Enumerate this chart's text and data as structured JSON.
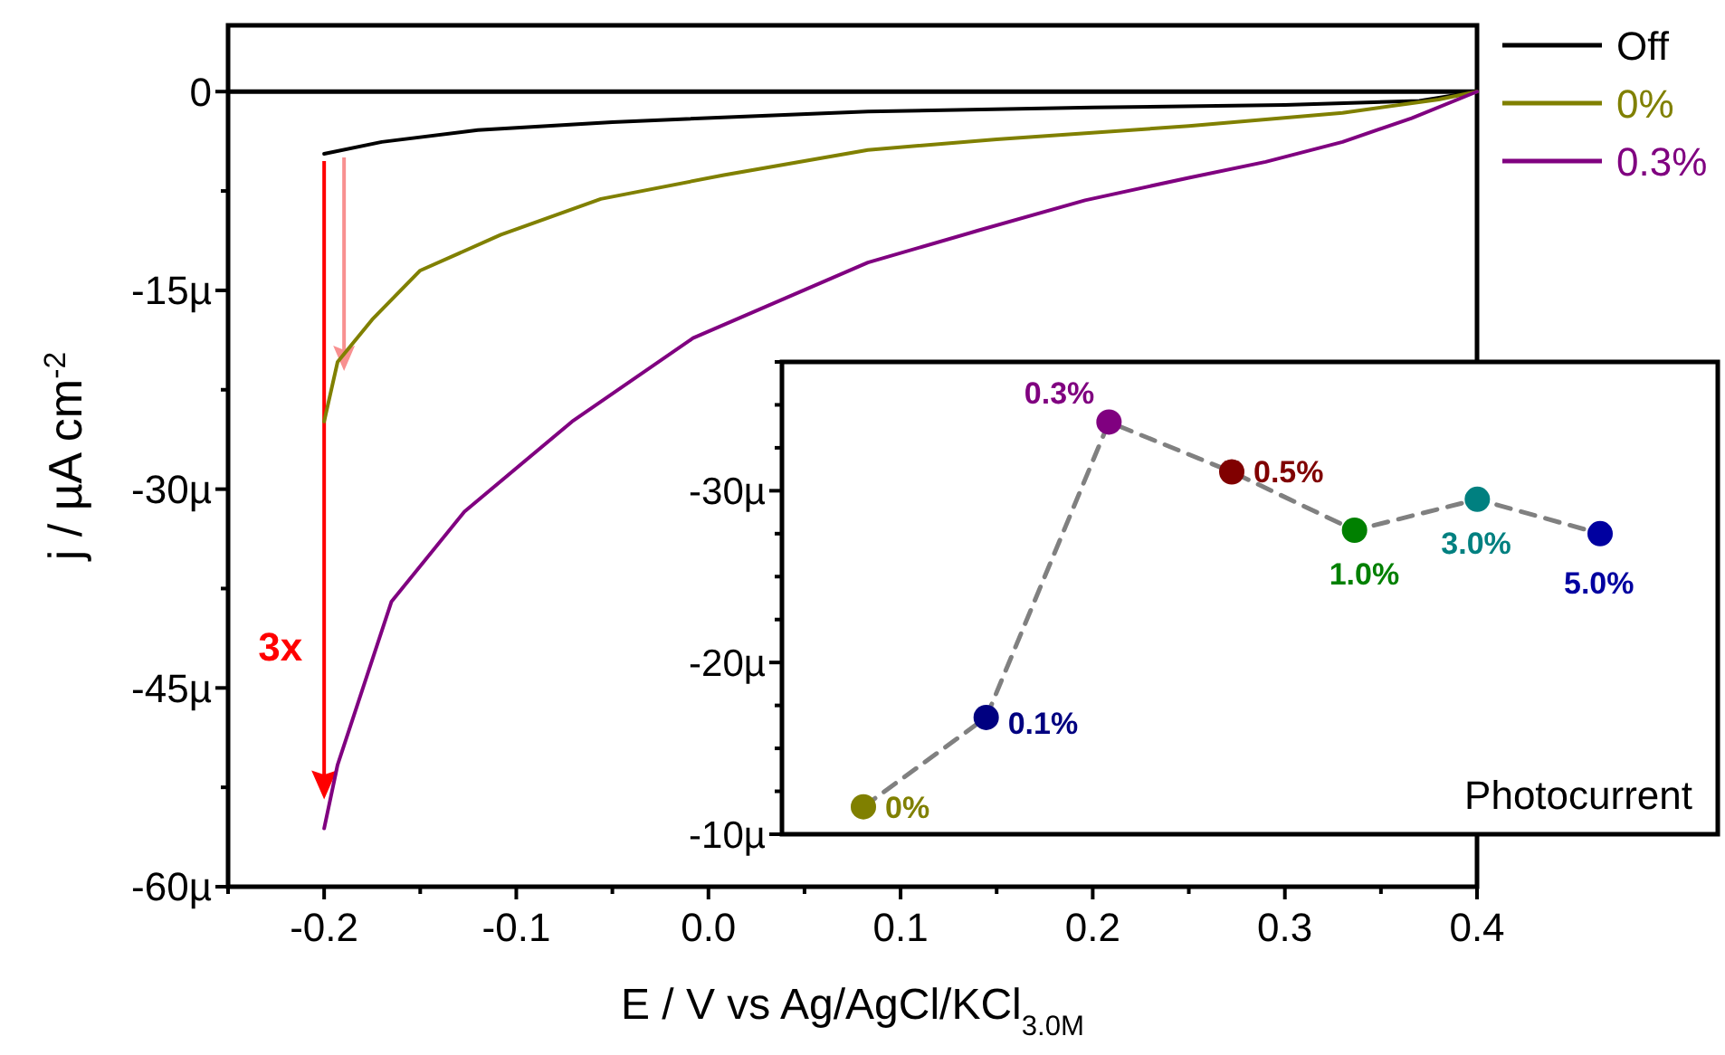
{
  "chart_data": [
    {
      "type": "line",
      "xlabel": "E / V vs  Ag/AgCl/KCl$_{3.0M}$",
      "ylabel": "j / µA cm$^{-2}$",
      "xlim": [
        -0.25,
        0.4
      ],
      "ylim": [
        -60,
        5
      ],
      "xticks": [
        {
          "value": -0.25,
          "label": null
        },
        -0.2,
        {
          "value": -0.15,
          "label": null
        },
        -0.1,
        {
          "value": -0.05,
          "label": null
        },
        {
          "value": 0,
          "label": "0.0"
        },
        {
          "value": 0.05,
          "label": null
        },
        0.1,
        {
          "value": 0.15,
          "label": null
        },
        0.2,
        {
          "value": 0.25,
          "label": null
        },
        0.3,
        {
          "value": 0.35,
          "label": null
        },
        0.4
      ],
      "yticks": [
        {
          "value": -60,
          "label": "-60µ"
        },
        {
          "value": -52.5,
          "label": null
        },
        {
          "value": -45,
          "label": "-45µ"
        },
        {
          "value": -37.5,
          "label": null
        },
        {
          "value": -30,
          "label": "-30µ"
        },
        {
          "value": -22.5,
          "label": null
        },
        {
          "value": -15,
          "label": "-15µ"
        },
        {
          "value": -7.5,
          "label": null
        },
        0
      ],
      "legend": "top right",
      "ref_lines": [
        {
          "axis": "y",
          "value": 0,
          "color": "#000000"
        }
      ],
      "annotations": [
        "3x"
      ],
      "series": [
        {
          "name": "Off",
          "color": "#000000",
          "x": [
            -0.2,
            -0.17,
            -0.12,
            -0.05,
            0.083,
            0.2,
            0.3,
            0.37,
            0.4
          ],
          "values": [
            -4.7,
            -3.8,
            -2.9,
            -2.3,
            -1.5,
            -1.2,
            -1.0,
            -0.7,
            0
          ]
        },
        {
          "name": "0%",
          "color": "#808000",
          "x": [
            -0.2,
            -0.193,
            -0.175,
            -0.15,
            -0.108,
            -0.056,
            0.008,
            0.083,
            0.15,
            0.25,
            0.33,
            0.38,
            0.4
          ],
          "values": [
            -24.9,
            -20.4,
            -17.2,
            -13.5,
            -10.8,
            -8.1,
            -6.3,
            -4.4,
            -3.6,
            -2.6,
            -1.6,
            -0.6,
            0
          ]
        },
        {
          "name": "0.3%",
          "color": "#800080",
          "x": [
            -0.2,
            -0.193,
            -0.165,
            -0.127,
            -0.071,
            -0.008,
            0.083,
            0.14,
            0.196,
            0.25,
            0.29,
            0.33,
            0.366,
            0.4
          ],
          "values": [
            -55.6,
            -50.8,
            -38.5,
            -31.7,
            -24.9,
            -18.6,
            -12.9,
            -10.5,
            -8.2,
            -6.5,
            -5.3,
            -3.8,
            -2,
            0
          ]
        }
      ]
    },
    {
      "type": "line",
      "title": "Photocurrent",
      "categories": [
        null,
        null,
        null,
        null,
        null,
        null,
        null
      ],
      "ylim": [
        -10,
        -37.5
      ],
      "tick_labels": "y",
      "marker": "circle",
      "line_style": "dashed",
      "yticks": [
        {
          "value": -10,
          "label": "-10µ"
        },
        {
          "value": -12.5,
          "label": null
        },
        {
          "value": -15,
          "label": null
        },
        {
          "value": -17.5,
          "label": null
        },
        {
          "value": -20,
          "label": "-20µ"
        },
        {
          "value": -22.5,
          "label": null
        },
        {
          "value": -25,
          "label": null
        },
        {
          "value": -27.5,
          "label": null
        },
        {
          "value": -30,
          "label": "-30µ"
        },
        {
          "value": -32.5,
          "label": null
        },
        {
          "value": -35,
          "label": null
        },
        {
          "value": -37.5,
          "label": null
        }
      ],
      "series": [
        {
          "color": "#808080",
          "colors": [
            "#808000",
            "#000080",
            "#800080",
            "#800000",
            "#008000",
            "#008080",
            "#0000a0"
          ],
          "values": [
            -11.6,
            -16.8,
            -34.0,
            -31.1,
            -27.7,
            -29.5,
            -27.5
          ]
        }
      ],
      "annotations": [
        "0%",
        "0.1%",
        "0.3%",
        "0.5%",
        "1.0%",
        "3.0%",
        "5.0%"
      ]
    }
  ]
}
